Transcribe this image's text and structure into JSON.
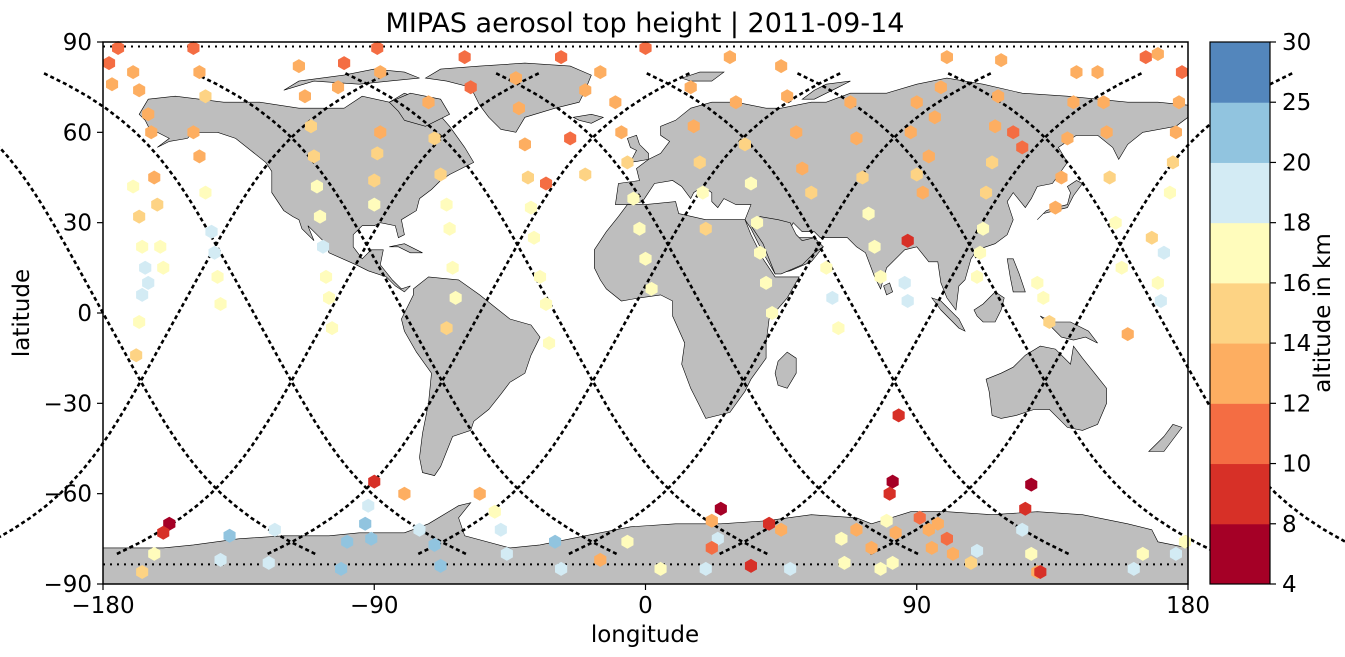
{
  "chart_data": {
    "type": "scatter",
    "title": "MIPAS aerosol top height | 2011-09-14",
    "xlabel": "longitude",
    "ylabel": "latitude",
    "xlim": [
      -180,
      180
    ],
    "ylim": [
      -90,
      90
    ],
    "xticks": [
      "−180",
      "−90",
      "0",
      "90",
      "180"
    ],
    "yticks": [
      "90",
      "60",
      "30",
      "0",
      "−30",
      "−60",
      "−90"
    ],
    "background": "world map with gray land masses",
    "colorbar": {
      "label": "altitude in km",
      "boundaries": [
        4,
        8,
        10,
        12,
        14,
        16,
        18,
        20,
        25,
        30
      ],
      "tick_labels": [
        "4",
        "8",
        "10",
        "12",
        "14",
        "16",
        "18",
        "20",
        "25",
        "30"
      ],
      "colors": [
        "#a50026",
        "#d73027",
        "#f46d43",
        "#fdae61",
        "#fee090",
        "#ffffbf",
        "#e0f3f8",
        "#abd9e9",
        "#74add1",
        "#4575b4",
        "#313695"
      ]
    },
    "colors": {
      "land": "#bebebe",
      "coast": "#000000",
      "track": "#000000",
      "band_colors": [
        "#a50026",
        "#d73027",
        "#f46d43",
        "#fdae61",
        "#fdd384",
        "#fffcbc",
        "#d3ebf4",
        "#91c4df",
        "#5386bc",
        "#313695"
      ]
    },
    "tracks": [
      {
        "lon_eq": -180,
        "dir": "down",
        "amp": 50
      },
      {
        "lon_eq": -155,
        "dir": "up",
        "amp": 50
      },
      {
        "lon_eq": -130,
        "dir": "down",
        "amp": 50
      },
      {
        "lon_eq": -105,
        "dir": "up",
        "amp": 50
      },
      {
        "lon_eq": -80,
        "dir": "down",
        "amp": 50
      },
      {
        "lon_eq": -55,
        "dir": "up",
        "amp": 50
      },
      {
        "lon_eq": -30,
        "dir": "down",
        "amp": 50
      },
      {
        "lon_eq": -5,
        "dir": "up",
        "amp": 50
      },
      {
        "lon_eq": 20,
        "dir": "down",
        "amp": 50
      },
      {
        "lon_eq": 45,
        "dir": "up",
        "amp": 50
      },
      {
        "lon_eq": 70,
        "dir": "down",
        "amp": 50
      },
      {
        "lon_eq": 95,
        "dir": "up",
        "amp": 50
      },
      {
        "lon_eq": 120,
        "dir": "down",
        "amp": 50
      },
      {
        "lon_eq": 145,
        "dir": "up",
        "amp": 50
      },
      {
        "lon_eq": 170,
        "dir": "down",
        "amp": 50
      }
    ],
    "points": [
      {
        "lon": -178,
        "lat": 83,
        "alt": 11
      },
      {
        "lon": -177,
        "lat": 76,
        "alt": 13
      },
      {
        "lon": -170,
        "lat": 42,
        "alt": 17
      },
      {
        "lon": -168,
        "lat": 32,
        "alt": 15
      },
      {
        "lon": -167,
        "lat": 22,
        "alt": 17
      },
      {
        "lon": -166,
        "lat": 15,
        "alt": 19
      },
      {
        "lon": -165,
        "lat": 10,
        "alt": 19
      },
      {
        "lon": -167,
        "lat": 6,
        "alt": 19
      },
      {
        "lon": -168,
        "lat": -3,
        "alt": 17
      },
      {
        "lon": -169,
        "lat": -14,
        "alt": 15
      },
      {
        "lon": -160,
        "lat": 15,
        "alt": 17
      },
      {
        "lon": -161,
        "lat": 22,
        "alt": 17
      },
      {
        "lon": -162,
        "lat": 36,
        "alt": 14
      },
      {
        "lon": -163,
        "lat": 45,
        "alt": 13
      },
      {
        "lon": -158,
        "lat": -70,
        "alt": 6
      },
      {
        "lon": -160,
        "lat": -73,
        "alt": 8
      },
      {
        "lon": -163,
        "lat": -80,
        "alt": 17
      },
      {
        "lon": -167,
        "lat": -86,
        "alt": 15
      },
      {
        "lon": -164,
        "lat": 60,
        "alt": 13
      },
      {
        "lon": -165,
        "lat": 66,
        "alt": 13
      },
      {
        "lon": -168,
        "lat": 74,
        "alt": 13
      },
      {
        "lon": -170,
        "lat": 80,
        "alt": 12
      },
      {
        "lon": -175,
        "lat": 88,
        "alt": 11
      },
      {
        "lon": -150,
        "lat": 60,
        "alt": 13
      },
      {
        "lon": -148,
        "lat": 52,
        "alt": 13
      },
      {
        "lon": -146,
        "lat": 40,
        "alt": 16
      },
      {
        "lon": -144,
        "lat": 27,
        "alt": 18
      },
      {
        "lon": -143,
        "lat": 20,
        "alt": 18
      },
      {
        "lon": -142,
        "lat": 12,
        "alt": 17
      },
      {
        "lon": -141,
        "lat": 3,
        "alt": 17
      },
      {
        "lon": -138,
        "lat": -74,
        "alt": 20
      },
      {
        "lon": -141,
        "lat": -82,
        "alt": 18
      },
      {
        "lon": -146,
        "lat": 72,
        "alt": 15
      },
      {
        "lon": -148,
        "lat": 80,
        "alt": 13
      },
      {
        "lon": -150,
        "lat": 88,
        "alt": 11
      },
      {
        "lon": -115,
        "lat": 82,
        "alt": 12
      },
      {
        "lon": -113,
        "lat": 72,
        "alt": 13
      },
      {
        "lon": -111,
        "lat": 62,
        "alt": 14
      },
      {
        "lon": -110,
        "lat": 52,
        "alt": 15
      },
      {
        "lon": -109,
        "lat": 42,
        "alt": 17
      },
      {
        "lon": -108,
        "lat": 32,
        "alt": 17
      },
      {
        "lon": -107,
        "lat": 22,
        "alt": 18
      },
      {
        "lon": -106,
        "lat": 12,
        "alt": 17
      },
      {
        "lon": -105,
        "lat": 5,
        "alt": 17
      },
      {
        "lon": -104,
        "lat": -5,
        "alt": 17
      },
      {
        "lon": -123,
        "lat": -72,
        "alt": 18
      },
      {
        "lon": -125,
        "lat": -83,
        "alt": 18
      },
      {
        "lon": -100,
        "lat": 83,
        "alt": 11
      },
      {
        "lon": -102,
        "lat": 75,
        "alt": 12
      },
      {
        "lon": -99,
        "lat": -76,
        "alt": 20
      },
      {
        "lon": -101,
        "lat": -85,
        "alt": 20
      },
      {
        "lon": -90,
        "lat": -56,
        "alt": 8
      },
      {
        "lon": -92,
        "lat": -64,
        "alt": 18
      },
      {
        "lon": -93,
        "lat": -70,
        "alt": 20
      },
      {
        "lon": -91,
        "lat": -75,
        "alt": 20
      },
      {
        "lon": -88,
        "lat": 60,
        "alt": 13
      },
      {
        "lon": -89,
        "lat": 53,
        "alt": 14
      },
      {
        "lon": -90,
        "lat": 44,
        "alt": 15
      },
      {
        "lon": -90,
        "lat": 36,
        "alt": 16
      },
      {
        "lon": -89,
        "lat": 88,
        "alt": 11
      },
      {
        "lon": -88,
        "lat": 80,
        "alt": 12
      },
      {
        "lon": -80,
        "lat": -60,
        "alt": 12
      },
      {
        "lon": -75,
        "lat": -72,
        "alt": 18
      },
      {
        "lon": -70,
        "lat": -77,
        "alt": 20
      },
      {
        "lon": -68,
        "lat": -84,
        "alt": 20
      },
      {
        "lon": -72,
        "lat": 70,
        "alt": 12
      },
      {
        "lon": -70,
        "lat": 58,
        "alt": 14
      },
      {
        "lon": -68,
        "lat": 46,
        "alt": 15
      },
      {
        "lon": -66,
        "lat": 36,
        "alt": 17
      },
      {
        "lon": -65,
        "lat": 28,
        "alt": 17
      },
      {
        "lon": -64,
        "lat": 15,
        "alt": 17
      },
      {
        "lon": -63,
        "lat": 5,
        "alt": 17
      },
      {
        "lon": -66,
        "lat": -5,
        "alt": 15
      },
      {
        "lon": -60,
        "lat": 85,
        "alt": 11
      },
      {
        "lon": -58,
        "lat": 75,
        "alt": 11
      },
      {
        "lon": -55,
        "lat": -60,
        "alt": 12
      },
      {
        "lon": -50,
        "lat": -66,
        "alt": 17
      },
      {
        "lon": -48,
        "lat": -72,
        "alt": 18
      },
      {
        "lon": -46,
        "lat": -80,
        "alt": 18
      },
      {
        "lon": -43,
        "lat": 78,
        "alt": 12
      },
      {
        "lon": -42,
        "lat": 68,
        "alt": 13
      },
      {
        "lon": -40,
        "lat": 56,
        "alt": 13
      },
      {
        "lon": -39,
        "lat": 45,
        "alt": 15
      },
      {
        "lon": -38,
        "lat": 35,
        "alt": 17
      },
      {
        "lon": -37,
        "lat": 25,
        "alt": 17
      },
      {
        "lon": -35,
        "lat": 12,
        "alt": 17
      },
      {
        "lon": -33,
        "lat": 3,
        "alt": 17
      },
      {
        "lon": -32,
        "lat": -10,
        "alt": 17
      },
      {
        "lon": -33,
        "lat": 43,
        "alt": 11
      },
      {
        "lon": -30,
        "lat": -76,
        "alt": 20
      },
      {
        "lon": -28,
        "lat": -85,
        "alt": 18
      },
      {
        "lon": -28,
        "lat": 85,
        "alt": 11
      },
      {
        "lon": -25,
        "lat": 58,
        "alt": 11
      },
      {
        "lon": -20,
        "lat": 74,
        "alt": 13
      },
      {
        "lon": -20,
        "lat": 46,
        "alt": 15
      },
      {
        "lon": -15,
        "lat": -82,
        "alt": 13
      },
      {
        "lon": -15,
        "lat": 80,
        "alt": 12
      },
      {
        "lon": -10,
        "lat": 70,
        "alt": 13
      },
      {
        "lon": -8,
        "lat": 60,
        "alt": 13
      },
      {
        "lon": -6,
        "lat": 50,
        "alt": 14
      },
      {
        "lon": -4,
        "lat": 38,
        "alt": 16
      },
      {
        "lon": -2,
        "lat": 28,
        "alt": 17
      },
      {
        "lon": 0,
        "lat": 18,
        "alt": 17
      },
      {
        "lon": 2,
        "lat": 8,
        "alt": 17
      },
      {
        "lon": -6,
        "lat": -76,
        "alt": 17
      },
      {
        "lon": 5,
        "lat": -85,
        "alt": 17
      },
      {
        "lon": 0,
        "lat": 88,
        "alt": 11
      },
      {
        "lon": 15,
        "lat": 75,
        "alt": 13
      },
      {
        "lon": 16,
        "lat": 62,
        "alt": 13
      },
      {
        "lon": 18,
        "lat": 50,
        "alt": 15
      },
      {
        "lon": 19,
        "lat": 40,
        "alt": 16
      },
      {
        "lon": 20,
        "lat": 28,
        "alt": 15
      },
      {
        "lon": 22,
        "lat": -69,
        "alt": 13
      },
      {
        "lon": 25,
        "lat": -65,
        "alt": 6
      },
      {
        "lon": 24,
        "lat": -75,
        "alt": 19
      },
      {
        "lon": 22,
        "lat": -78,
        "alt": 10
      },
      {
        "lon": 20,
        "lat": -85,
        "alt": 18
      },
      {
        "lon": 28,
        "lat": 85,
        "alt": 12
      },
      {
        "lon": 30,
        "lat": 70,
        "alt": 13
      },
      {
        "lon": 33,
        "lat": 56,
        "alt": 14
      },
      {
        "lon": 35,
        "lat": 43,
        "alt": 16
      },
      {
        "lon": 37,
        "lat": 30,
        "alt": 17
      },
      {
        "lon": 38,
        "lat": 20,
        "alt": 17
      },
      {
        "lon": 40,
        "lat": 10,
        "alt": 17
      },
      {
        "lon": 42,
        "lat": 0,
        "alt": 17
      },
      {
        "lon": 35,
        "lat": -84,
        "alt": 9
      },
      {
        "lon": 41,
        "lat": -70,
        "alt": 8
      },
      {
        "lon": 45,
        "lat": -72,
        "alt": 13
      },
      {
        "lon": 48,
        "lat": -85,
        "alt": 18
      },
      {
        "lon": 45,
        "lat": 82,
        "alt": 13
      },
      {
        "lon": 47,
        "lat": 72,
        "alt": 13
      },
      {
        "lon": 50,
        "lat": 60,
        "alt": 13
      },
      {
        "lon": 52,
        "lat": 48,
        "alt": 13
      },
      {
        "lon": 55,
        "lat": 40,
        "alt": 15
      },
      {
        "lon": 60,
        "lat": 15,
        "alt": 17
      },
      {
        "lon": 62,
        "lat": 5,
        "alt": 18
      },
      {
        "lon": 64,
        "lat": -5,
        "alt": 17
      },
      {
        "lon": 65,
        "lat": -75,
        "alt": 17
      },
      {
        "lon": 66,
        "lat": -83,
        "alt": 17
      },
      {
        "lon": 68,
        "lat": 70,
        "alt": 13
      },
      {
        "lon": 70,
        "lat": 58,
        "alt": 13
      },
      {
        "lon": 72,
        "lat": 45,
        "alt": 14
      },
      {
        "lon": 74,
        "lat": 33,
        "alt": 17
      },
      {
        "lon": 76,
        "lat": 22,
        "alt": 17
      },
      {
        "lon": 78,
        "lat": 12,
        "alt": 17
      },
      {
        "lon": 70,
        "lat": -72,
        "alt": 13
      },
      {
        "lon": 75,
        "lat": -78,
        "alt": 13
      },
      {
        "lon": 78,
        "lat": -85,
        "alt": 17
      },
      {
        "lon": 80,
        "lat": -69,
        "alt": 17
      },
      {
        "lon": 82,
        "lat": -56,
        "alt": 6
      },
      {
        "lon": 81,
        "lat": -60,
        "alt": 8
      },
      {
        "lon": 83,
        "lat": -73,
        "alt": 13
      },
      {
        "lon": 82,
        "lat": -83,
        "alt": 17
      },
      {
        "lon": 87,
        "lat": 24,
        "alt": 8
      },
      {
        "lon": 84,
        "lat": -34,
        "alt": 8
      },
      {
        "lon": 86,
        "lat": 10,
        "alt": 19
      },
      {
        "lon": 87,
        "lat": 4,
        "alt": 19
      },
      {
        "lon": 90,
        "lat": 70,
        "alt": 13
      },
      {
        "lon": 88,
        "lat": 60,
        "alt": 13
      },
      {
        "lon": 90,
        "lat": 46,
        "alt": 15
      },
      {
        "lon": 91,
        "lat": -68,
        "alt": 10
      },
      {
        "lon": 94,
        "lat": -72,
        "alt": 13
      },
      {
        "lon": 95,
        "lat": -78,
        "alt": 13
      },
      {
        "lon": 100,
        "lat": 85,
        "alt": 12
      },
      {
        "lon": 98,
        "lat": 75,
        "alt": 13
      },
      {
        "lon": 96,
        "lat": 65,
        "alt": 13
      },
      {
        "lon": 94,
        "lat": 52,
        "alt": 13
      },
      {
        "lon": 92,
        "lat": 40,
        "alt": 13
      },
      {
        "lon": 97,
        "lat": -70,
        "alt": 12
      },
      {
        "lon": 100,
        "lat": -75,
        "alt": 11
      },
      {
        "lon": 102,
        "lat": -80,
        "alt": 13
      },
      {
        "lon": 108,
        "lat": -83,
        "alt": 15
      },
      {
        "lon": 110,
        "lat": -79,
        "alt": 18
      },
      {
        "lon": 118,
        "lat": 84,
        "alt": 12
      },
      {
        "lon": 117,
        "lat": 72,
        "alt": 13
      },
      {
        "lon": 116,
        "lat": 62,
        "alt": 13
      },
      {
        "lon": 115,
        "lat": 50,
        "alt": 14
      },
      {
        "lon": 113,
        "lat": 40,
        "alt": 15
      },
      {
        "lon": 112,
        "lat": 28,
        "alt": 17
      },
      {
        "lon": 111,
        "lat": 20,
        "alt": 17
      },
      {
        "lon": 110,
        "lat": 12,
        "alt": 17
      },
      {
        "lon": 122,
        "lat": 60,
        "alt": 11
      },
      {
        "lon": 125,
        "lat": 55,
        "alt": 11
      },
      {
        "lon": 128,
        "lat": -57,
        "alt": 6
      },
      {
        "lon": 126,
        "lat": -65,
        "alt": 8
      },
      {
        "lon": 125,
        "lat": -72,
        "alt": 18
      },
      {
        "lon": 128,
        "lat": -80,
        "alt": 17
      },
      {
        "lon": 130,
        "lat": -86,
        "alt": 12
      },
      {
        "lon": 131,
        "lat": -86,
        "alt": 9
      },
      {
        "lon": 130,
        "lat": 10,
        "alt": 17
      },
      {
        "lon": 132,
        "lat": 5,
        "alt": 17
      },
      {
        "lon": 134,
        "lat": -3,
        "alt": 15
      },
      {
        "lon": 136,
        "lat": 35,
        "alt": 13
      },
      {
        "lon": 138,
        "lat": 45,
        "alt": 13
      },
      {
        "lon": 140,
        "lat": 58,
        "alt": 13
      },
      {
        "lon": 142,
        "lat": 70,
        "alt": 13
      },
      {
        "lon": 143,
        "lat": 80,
        "alt": 12
      },
      {
        "lon": 150,
        "lat": 80,
        "alt": 12
      },
      {
        "lon": 152,
        "lat": 70,
        "alt": 13
      },
      {
        "lon": 153,
        "lat": 60,
        "alt": 13
      },
      {
        "lon": 154,
        "lat": 45,
        "alt": 15
      },
      {
        "lon": 156,
        "lat": 30,
        "alt": 17
      },
      {
        "lon": 158,
        "lat": 15,
        "alt": 17
      },
      {
        "lon": 160,
        "lat": -7,
        "alt": 13
      },
      {
        "lon": 162,
        "lat": -85,
        "alt": 18
      },
      {
        "lon": 165,
        "lat": -80,
        "alt": 17
      },
      {
        "lon": 168,
        "lat": 25,
        "alt": 15
      },
      {
        "lon": 170,
        "lat": 10,
        "alt": 17
      },
      {
        "lon": 171,
        "lat": 4,
        "alt": 19
      },
      {
        "lon": 172,
        "lat": 20,
        "alt": 19
      },
      {
        "lon": 174,
        "lat": 40,
        "alt": 17
      },
      {
        "lon": 175,
        "lat": 50,
        "alt": 15
      },
      {
        "lon": 176,
        "lat": 60,
        "alt": 13
      },
      {
        "lon": 177,
        "lat": 70,
        "alt": 13
      },
      {
        "lon": 178,
        "lat": 80,
        "alt": 11
      },
      {
        "lon": 176,
        "lat": -80,
        "alt": 18
      },
      {
        "lon": 179,
        "lat": -76,
        "alt": 17
      },
      {
        "lon": 166,
        "lat": 85,
        "alt": 11
      },
      {
        "lon": 170,
        "lat": 86,
        "alt": 12
      }
    ]
  }
}
